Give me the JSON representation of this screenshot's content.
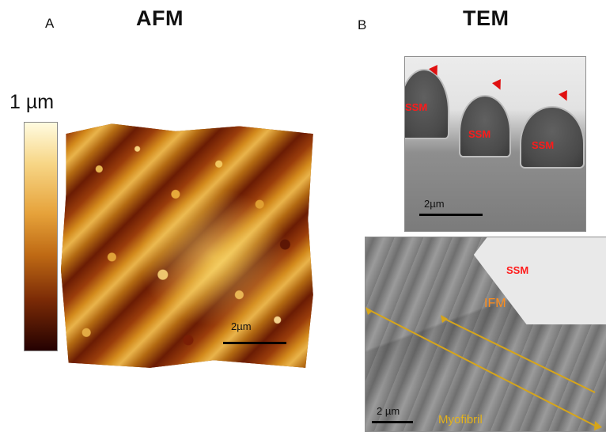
{
  "panel_a": {
    "letter": "A",
    "title": "AFM",
    "colorbar_top_label": "1 µm",
    "scale_label": "2µm"
  },
  "panel_b": {
    "letter": "B",
    "title": "TEM",
    "top_image": {
      "labels": [
        "SSM",
        "SSM",
        "SSM"
      ],
      "scale_label": "2µm"
    },
    "bottom_image": {
      "ssm_label": "SSM",
      "ifm_label": "IFM",
      "myofibril_label": "Myofibril",
      "scale_label": "2 µm"
    }
  },
  "colors": {
    "arrow_red": "#e01010",
    "ssm_label": "#ff1a1a",
    "ifm_label": "#ff8c1a",
    "myofibril_label": "#e3b21c",
    "myofibril_line": "#d6a51a"
  }
}
